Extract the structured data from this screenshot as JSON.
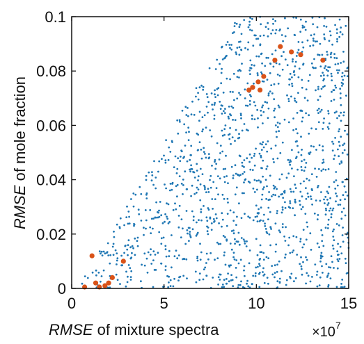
{
  "chart_data": {
    "type": "scatter",
    "xlim": [
      0,
      15
    ],
    "ylim": [
      0,
      0.1
    ],
    "x_ticks": [
      "0",
      "5",
      "10",
      "15"
    ],
    "y_ticks": [
      "0",
      "0.02",
      "0.04",
      "0.06",
      "0.08",
      "0.1"
    ],
    "x_multiplier": "×10",
    "x_multiplier_exp": "7",
    "xlabel": {
      "italic": "RMSE",
      "rest": " of mixture spectra"
    },
    "ylabel": {
      "italic": "RMSE",
      "rest": " of mole fraction"
    },
    "grid": false,
    "series": [
      {
        "color": "#1f77b4",
        "marker": "dot",
        "density_note": "dense cloud of small points bounded roughly by y <= 0.011*x",
        "count": 1400
      },
      {
        "color": "#d95319",
        "marker": "circle",
        "points": [
          [
            0.7,
            0.0005
          ],
          [
            1.1,
            0.012
          ],
          [
            1.3,
            0.002
          ],
          [
            1.5,
            0.0005
          ],
          [
            1.8,
            0.001
          ],
          [
            2.0,
            0.002
          ],
          [
            2.2,
            0.004
          ],
          [
            2.8,
            0.01
          ],
          [
            9.6,
            0.073
          ],
          [
            9.8,
            0.074
          ],
          [
            10.1,
            0.076
          ],
          [
            10.2,
            0.073
          ],
          [
            10.4,
            0.078
          ],
          [
            11.0,
            0.084
          ],
          [
            11.3,
            0.089
          ],
          [
            11.9,
            0.087
          ],
          [
            12.4,
            0.086
          ],
          [
            13.6,
            0.084
          ]
        ]
      }
    ]
  }
}
